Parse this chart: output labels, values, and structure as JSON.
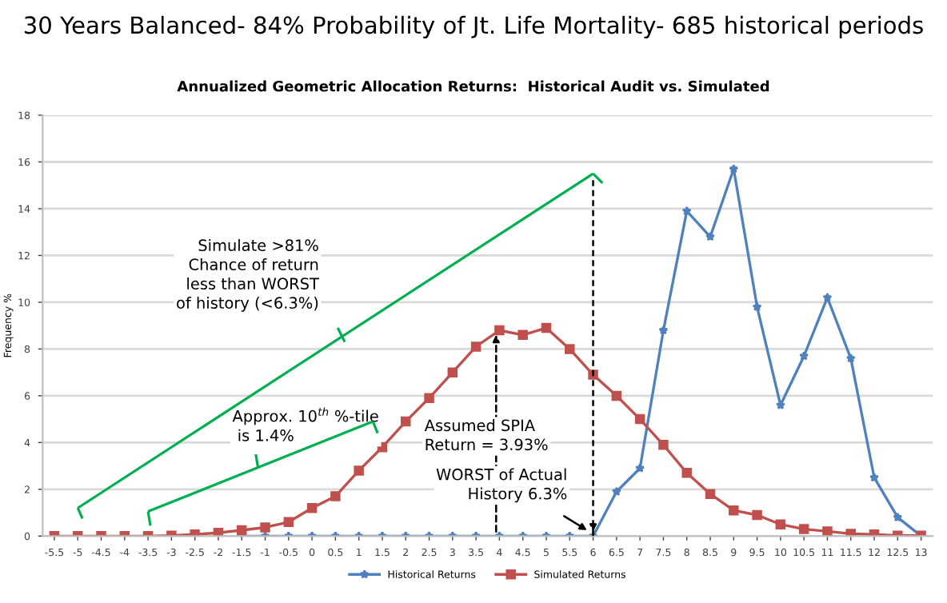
{
  "chart_data": {
    "type": "line",
    "title": "30 Years Balanced- 84% Probability of Jt. Life Mortality- 685 historical periods",
    "subtitle": "Annualized Geometric Allocation Returns:  Historical Audit vs. Simulated",
    "ylabel": "Frequency %",
    "categories": [
      "-5.5",
      "-5",
      "-4.5",
      "-4",
      "-3.5",
      "-3",
      "-2.5",
      "-2",
      "-1.5",
      "-1",
      "-0.5",
      "0",
      "0.5",
      "1",
      "1.5",
      "2",
      "2.5",
      "3",
      "3.5",
      "4",
      "4.5",
      "5",
      "5.5",
      "6",
      "6.5",
      "7",
      "7.5",
      "8",
      "8.5",
      "9",
      "9.5",
      "10",
      "10.5",
      "11",
      "11.5",
      "12",
      "12.5",
      "13"
    ],
    "series": [
      {
        "name": "Historical Returns",
        "color": "#4f81bd",
        "marker": "star",
        "values": [
          null,
          null,
          null,
          null,
          null,
          null,
          null,
          null,
          0,
          0,
          0,
          0,
          0,
          0,
          0,
          0,
          0,
          0,
          0,
          0,
          0,
          0,
          0,
          0,
          1.9,
          2.9,
          8.8,
          13.9,
          12.8,
          15.7,
          9.8,
          5.6,
          7.7,
          10.2,
          7.6,
          2.5,
          0.8,
          0
        ]
      },
      {
        "name": "Simulated Returns",
        "color": "#c0504d",
        "marker": "square",
        "values": [
          0,
          0,
          0,
          0,
          0,
          0.02,
          0.07,
          0.14,
          0.25,
          0.37,
          0.6,
          1.2,
          1.7,
          2.8,
          3.8,
          4.9,
          5.9,
          7.0,
          8.1,
          8.8,
          8.6,
          8.9,
          8.0,
          6.9,
          6.0,
          5.0,
          3.9,
          2.7,
          1.8,
          1.1,
          0.9,
          0.5,
          0.3,
          0.2,
          0.1,
          0.07,
          0.02,
          0.02
        ]
      }
    ],
    "ylim": [
      0,
      18
    ],
    "yticks": [
      0,
      2,
      4,
      6,
      8,
      10,
      12,
      14,
      16,
      18
    ],
    "grid": "y",
    "legend": "bottom",
    "ref_lines": [
      {
        "axis": "x",
        "value": "6",
        "color": "#000000",
        "line_style": "dashed"
      }
    ],
    "annotations": [
      "Simulate >81%\nChance of return\nless than WORST\nof history (<6.3%)",
      "Approx. 10$^{th}$ %-tile\n is 1.4%",
      "Assumed SPIA\nReturn = 3.93%",
      "WORST of Actual\n   History 6.3%"
    ]
  }
}
